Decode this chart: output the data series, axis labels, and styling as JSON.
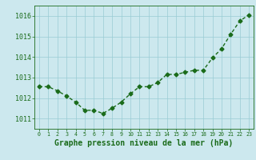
{
  "x": [
    0,
    1,
    2,
    3,
    4,
    5,
    6,
    7,
    8,
    9,
    10,
    11,
    12,
    13,
    14,
    15,
    16,
    17,
    18,
    19,
    20,
    21,
    22,
    23
  ],
  "y": [
    1012.55,
    1012.55,
    1012.35,
    1012.1,
    1011.8,
    1011.4,
    1011.4,
    1011.25,
    1011.5,
    1011.8,
    1012.2,
    1012.55,
    1012.55,
    1012.75,
    1013.15,
    1013.15,
    1013.25,
    1013.35,
    1013.35,
    1013.95,
    1014.4,
    1015.1,
    1015.75,
    1016.05
  ],
  "line_color": "#1a6b1a",
  "marker": "D",
  "marker_size": 2.5,
  "line_width": 1.0,
  "xlabel": "Graphe pression niveau de la mer (hPa)",
  "xlabel_fontsize": 7,
  "xlabel_fontweight": "bold",
  "tick_fontsize": 6,
  "tick_color": "#1a6b1a",
  "background_color": "#cce8ee",
  "grid_color": "#99ccd4",
  "ylim": [
    1010.5,
    1016.5
  ],
  "xlim": [
    -0.5,
    23.5
  ],
  "yticks": [
    1011,
    1012,
    1013,
    1014,
    1015,
    1016
  ],
  "xticks": [
    0,
    1,
    2,
    3,
    4,
    5,
    6,
    7,
    8,
    9,
    10,
    11,
    12,
    13,
    14,
    15,
    16,
    17,
    18,
    19,
    20,
    21,
    22,
    23
  ]
}
